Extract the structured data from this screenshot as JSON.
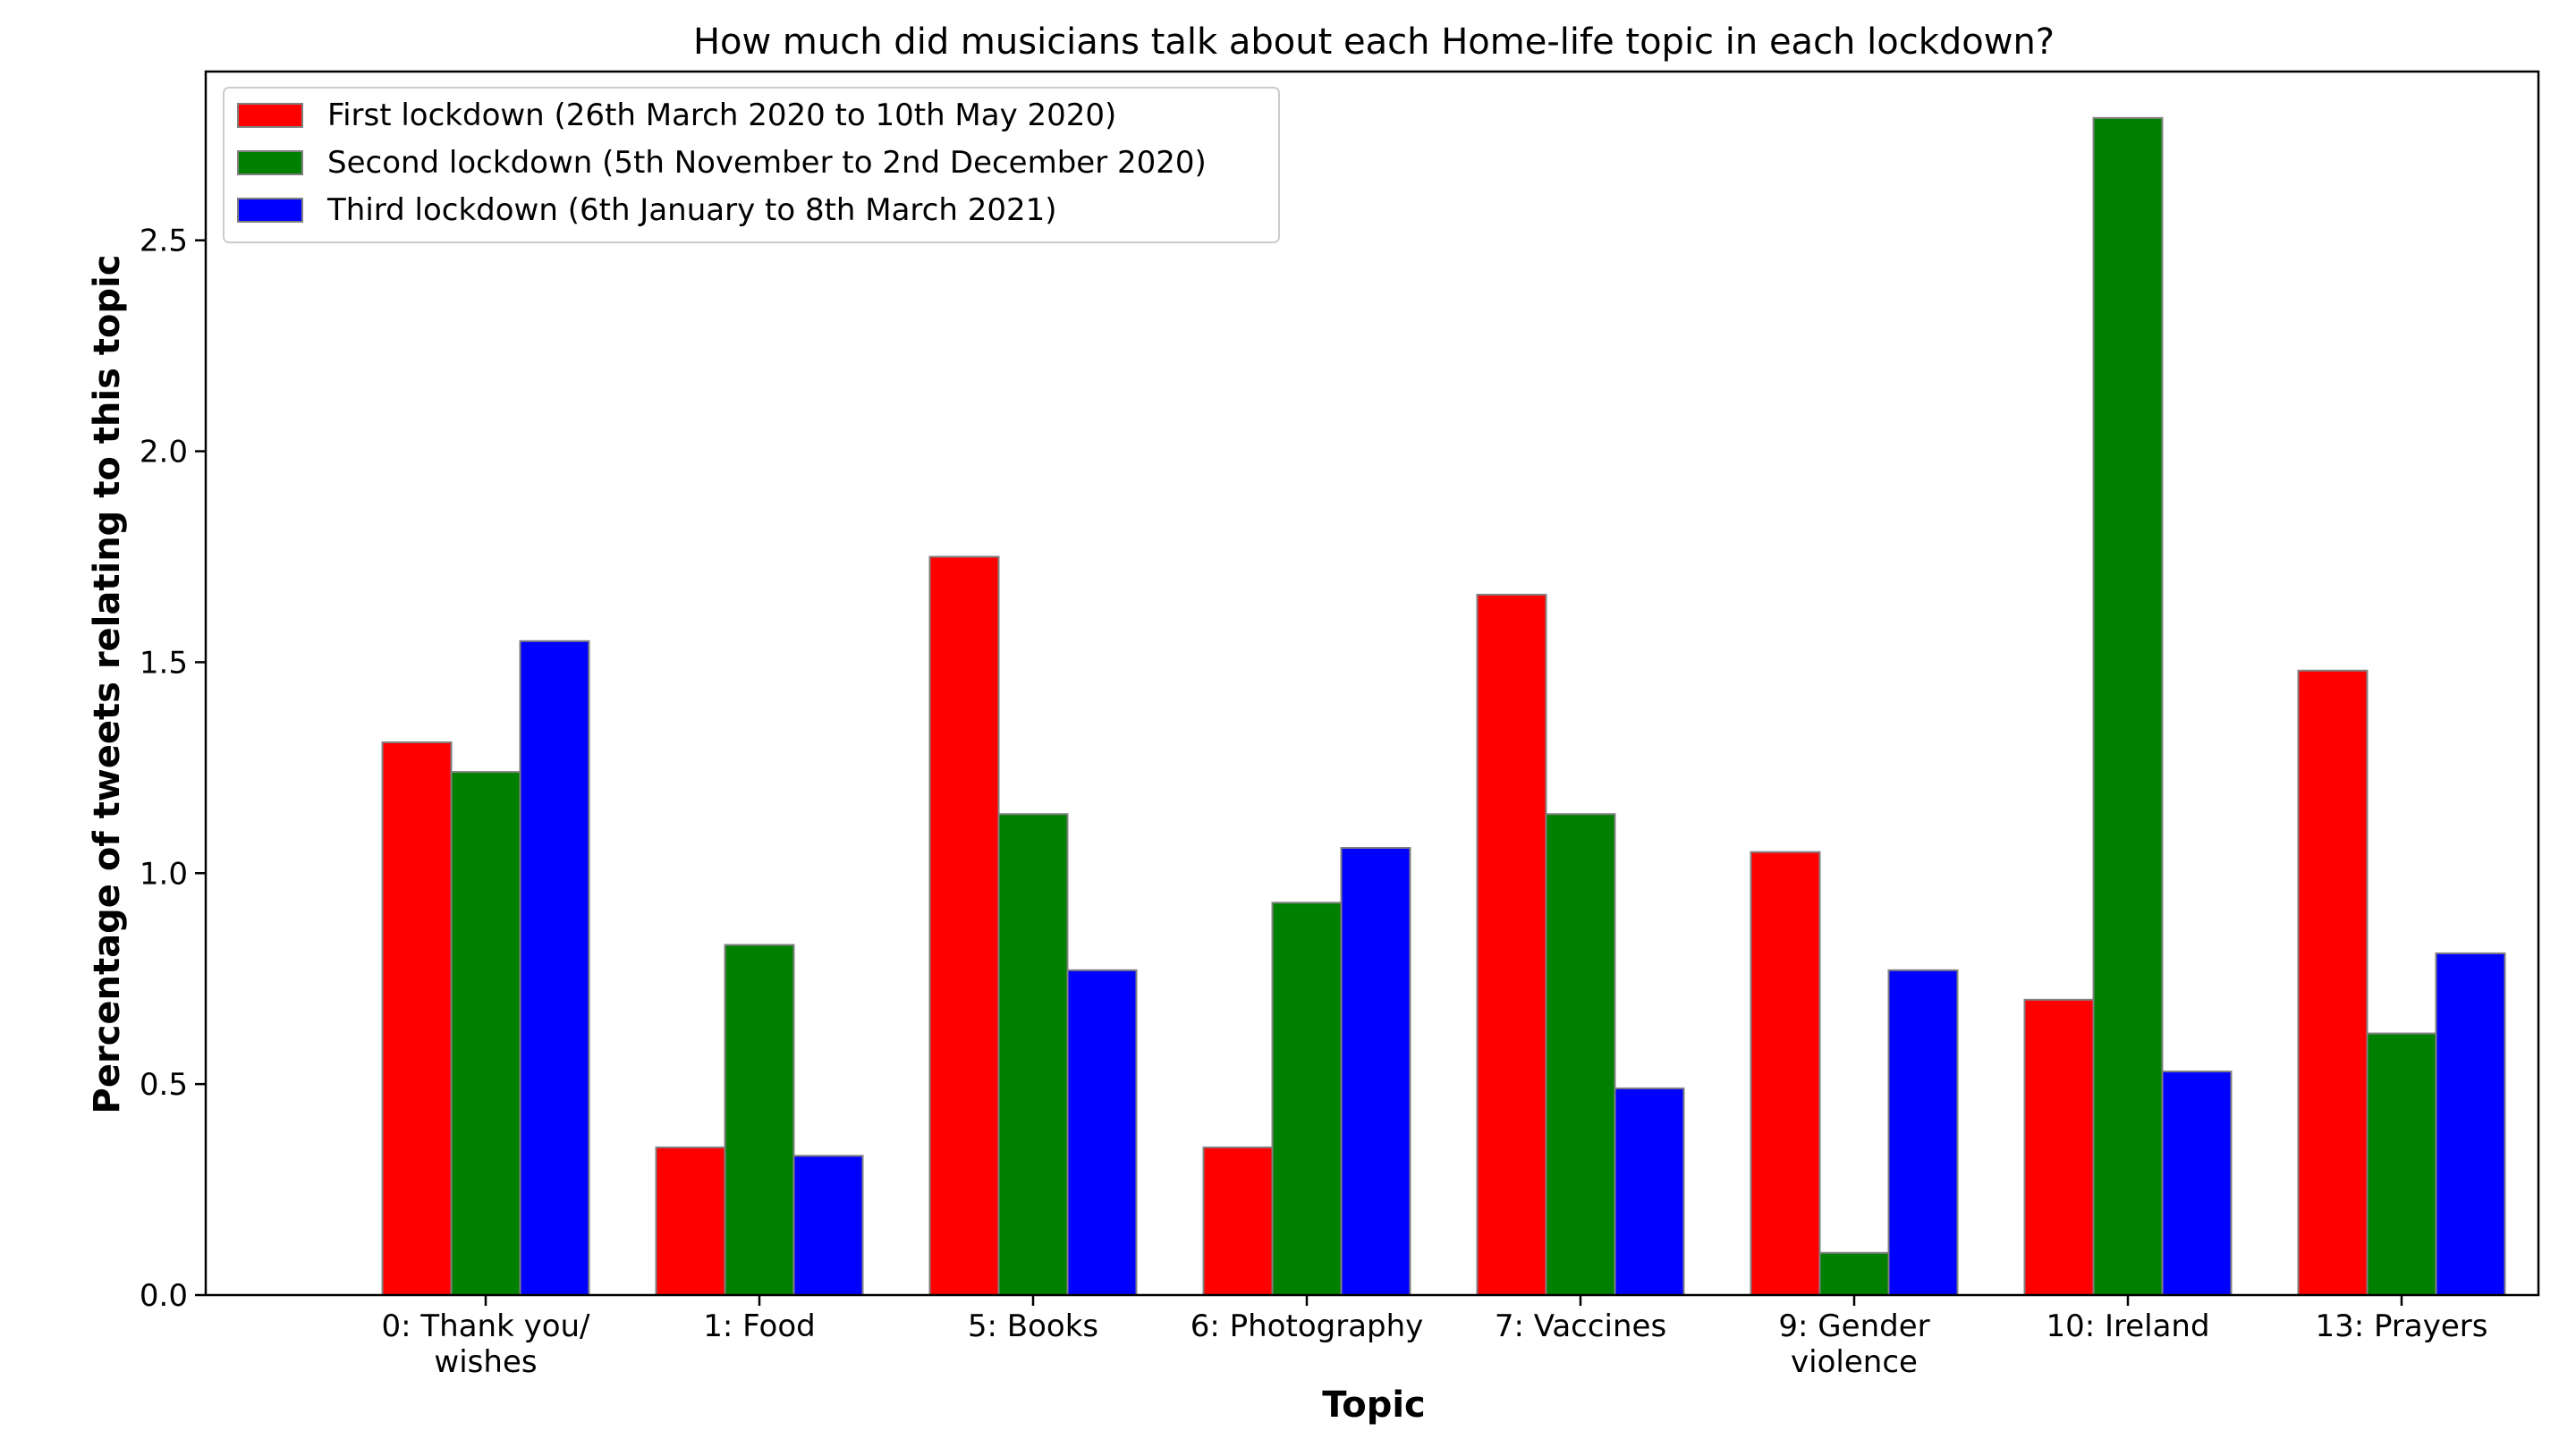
{
  "chart_data": {
    "type": "bar",
    "title": "How much did musicians talk about each Home-life topic in each lockdown?",
    "xlabel": "Topic",
    "ylabel": "Percentage of tweets relating to this topic",
    "categories": [
      [
        "0: Thank you/",
        "wishes"
      ],
      [
        "1: Food"
      ],
      [
        "5: Books"
      ],
      [
        "6: Photography"
      ],
      [
        "7: Vaccines"
      ],
      [
        "9: Gender",
        "violence"
      ],
      [
        "10: Ireland"
      ],
      [
        "13: Prayers"
      ]
    ],
    "series": [
      {
        "name": "First lockdown (26th March 2020 to 10th May 2020)",
        "color": "#ff0000",
        "values": [
          1.31,
          0.35,
          1.75,
          0.35,
          1.66,
          1.05,
          0.7,
          1.48
        ]
      },
      {
        "name": "Second lockdown (5th November to 2nd December 2020)",
        "color": "#008000",
        "values": [
          1.24,
          0.83,
          1.14,
          0.93,
          1.14,
          0.1,
          2.79,
          0.62
        ]
      },
      {
        "name": "Third lockdown (6th January to 8th March 2021)",
        "color": "#0000ff",
        "values": [
          1.55,
          0.33,
          0.77,
          1.06,
          0.49,
          0.77,
          0.53,
          0.81
        ]
      }
    ],
    "yticks": [
      "0.0",
      "0.5",
      "1.0",
      "1.5",
      "2.0",
      "2.5"
    ],
    "ylim": [
      0,
      2.9
    ],
    "legend_position": "top-left",
    "grid": false
  }
}
